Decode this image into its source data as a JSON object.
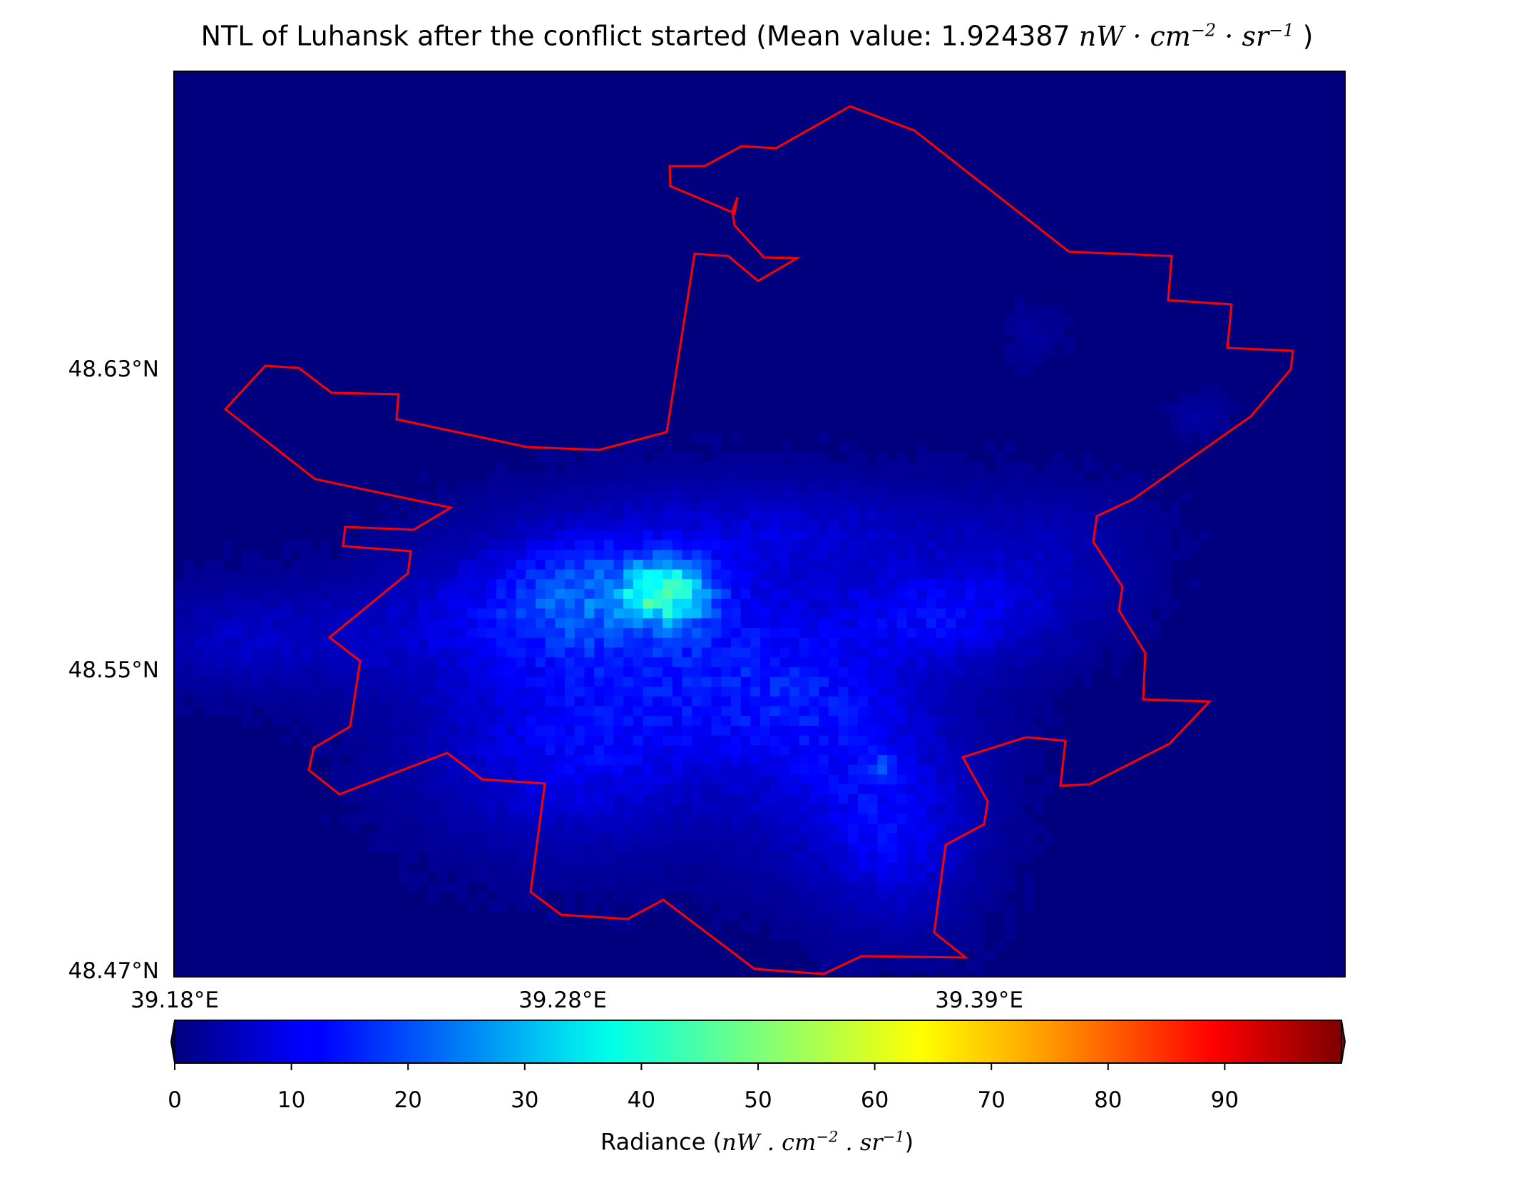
{
  "title": {
    "prefix": "NTL of Luhansk after the conflict started (Mean value: 1.924387 ",
    "unit_html": "nW · cm<sup>−2</sup> · sr<sup>−1</sup>",
    "suffix": " )"
  },
  "map": {
    "region": "Luhansk",
    "boundary_color": "#ff0000",
    "background_color": "#00007f",
    "lat_ticks": [
      "48.63°N",
      "48.55°N",
      "48.47°N"
    ],
    "lon_ticks": [
      "39.18°E",
      "39.28°E",
      "39.39°E"
    ],
    "colormap": "jet"
  },
  "colorbar": {
    "min": 0,
    "max": 100,
    "extend": "both",
    "ticks": [
      "0",
      "10",
      "20",
      "30",
      "40",
      "50",
      "60",
      "70",
      "80",
      "90"
    ],
    "label_prefix": "Radiance (",
    "label_unit_html": "nW . cm<sup>−2</sup> . sr<sup>−1</sup>",
    "label_suffix": ")"
  }
}
